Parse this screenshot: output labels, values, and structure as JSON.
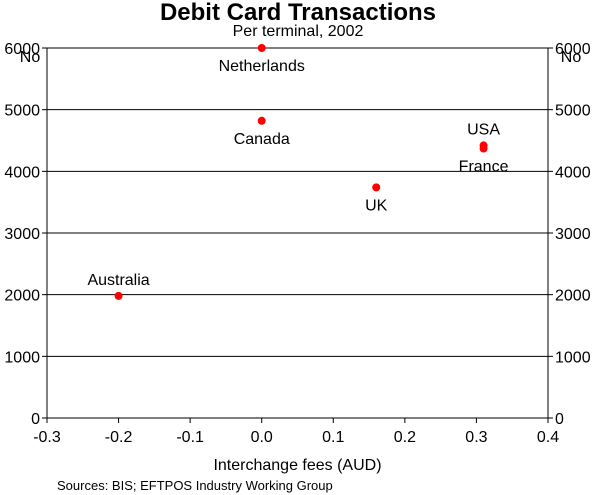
{
  "chart_data": {
    "type": "scatter",
    "title": "Debit Card Transactions",
    "subtitle": "Per terminal, 2002",
    "xlabel": "Interchange fees (AUD)",
    "ylabel_left": "No",
    "ylabel_right": "No",
    "xlim": [
      -0.3,
      0.4
    ],
    "ylim": [
      0,
      6000
    ],
    "xticks": [
      "-0.3",
      "-0.2",
      "-0.1",
      "0.0",
      "0.1",
      "0.2",
      "0.3",
      "0.4"
    ],
    "yticks": [
      "0",
      "1000",
      "2000",
      "3000",
      "4000",
      "5000",
      "6000"
    ],
    "grid": true,
    "marker_color": "#ff0000",
    "points": [
      {
        "label": "Netherlands",
        "x": 0.0,
        "y": 6000,
        "label_pos": "below"
      },
      {
        "label": "Canada",
        "x": 0.0,
        "y": 4820,
        "label_pos": "below"
      },
      {
        "label": "USA",
        "x": 0.31,
        "y": 4420,
        "label_pos": "above"
      },
      {
        "label": "France",
        "x": 0.31,
        "y": 4370,
        "label_pos": "below"
      },
      {
        "label": "UK",
        "x": 0.16,
        "y": 3740,
        "label_pos": "below"
      },
      {
        "label": "Australia",
        "x": -0.2,
        "y": 1980,
        "label_pos": "above"
      }
    ],
    "source": "Sources: BIS; EFTPOS Industry Working Group"
  }
}
